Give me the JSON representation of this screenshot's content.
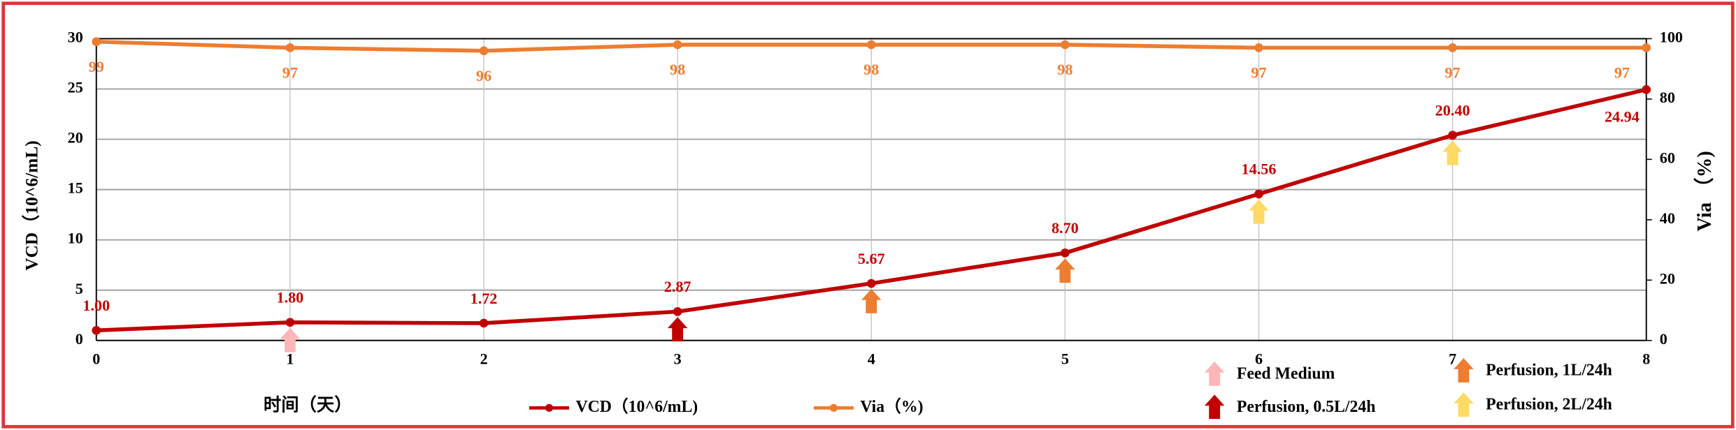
{
  "chart_data": {
    "type": "line",
    "x": [
      0,
      1,
      2,
      3,
      4,
      5,
      6,
      7,
      8
    ],
    "xlim": [
      0,
      8
    ],
    "xticks": [
      0,
      1,
      2,
      3,
      4,
      5,
      6,
      7,
      8
    ],
    "xlabel": "时间（天）",
    "ylabel": "VCD（10^6/mL)",
    "y2label": "Via （%)",
    "ylim": [
      0,
      30
    ],
    "yticks": [
      0,
      5,
      10,
      15,
      20,
      25,
      30
    ],
    "y2lim": [
      0,
      100
    ],
    "y2ticks": [
      0,
      20,
      40,
      60,
      80,
      100
    ],
    "grid": true,
    "series": [
      {
        "name": "VCD（10^6/mL)",
        "color": "#c00000",
        "values": [
          1.0,
          1.8,
          1.72,
          2.87,
          5.67,
          8.7,
          14.56,
          20.4,
          24.94
        ],
        "value_labels": [
          "1.00",
          "1.80",
          "1.72",
          "2.87",
          "5.67",
          "8.70",
          "14.56",
          "20.40",
          "24.94"
        ]
      },
      {
        "name": "Via（%)",
        "color": "#ed7d31",
        "axis": "y2",
        "values": [
          99,
          97,
          96,
          98,
          98,
          98,
          97,
          97,
          97
        ]
      }
    ],
    "events": [
      {
        "name": "Feed Medium",
        "color": "#ffb6b9",
        "x": [
          1
        ]
      },
      {
        "name": "Perfusion, 0.5L/24h",
        "color": "#c00000",
        "x": [
          3
        ]
      },
      {
        "name": "Perfusion, 1L/24h",
        "color": "#ed7d31",
        "x": [
          4,
          5
        ]
      },
      {
        "name": "Perfusion, 2L/24h",
        "color": "#ffd966",
        "x": [
          6,
          7
        ]
      }
    ]
  }
}
